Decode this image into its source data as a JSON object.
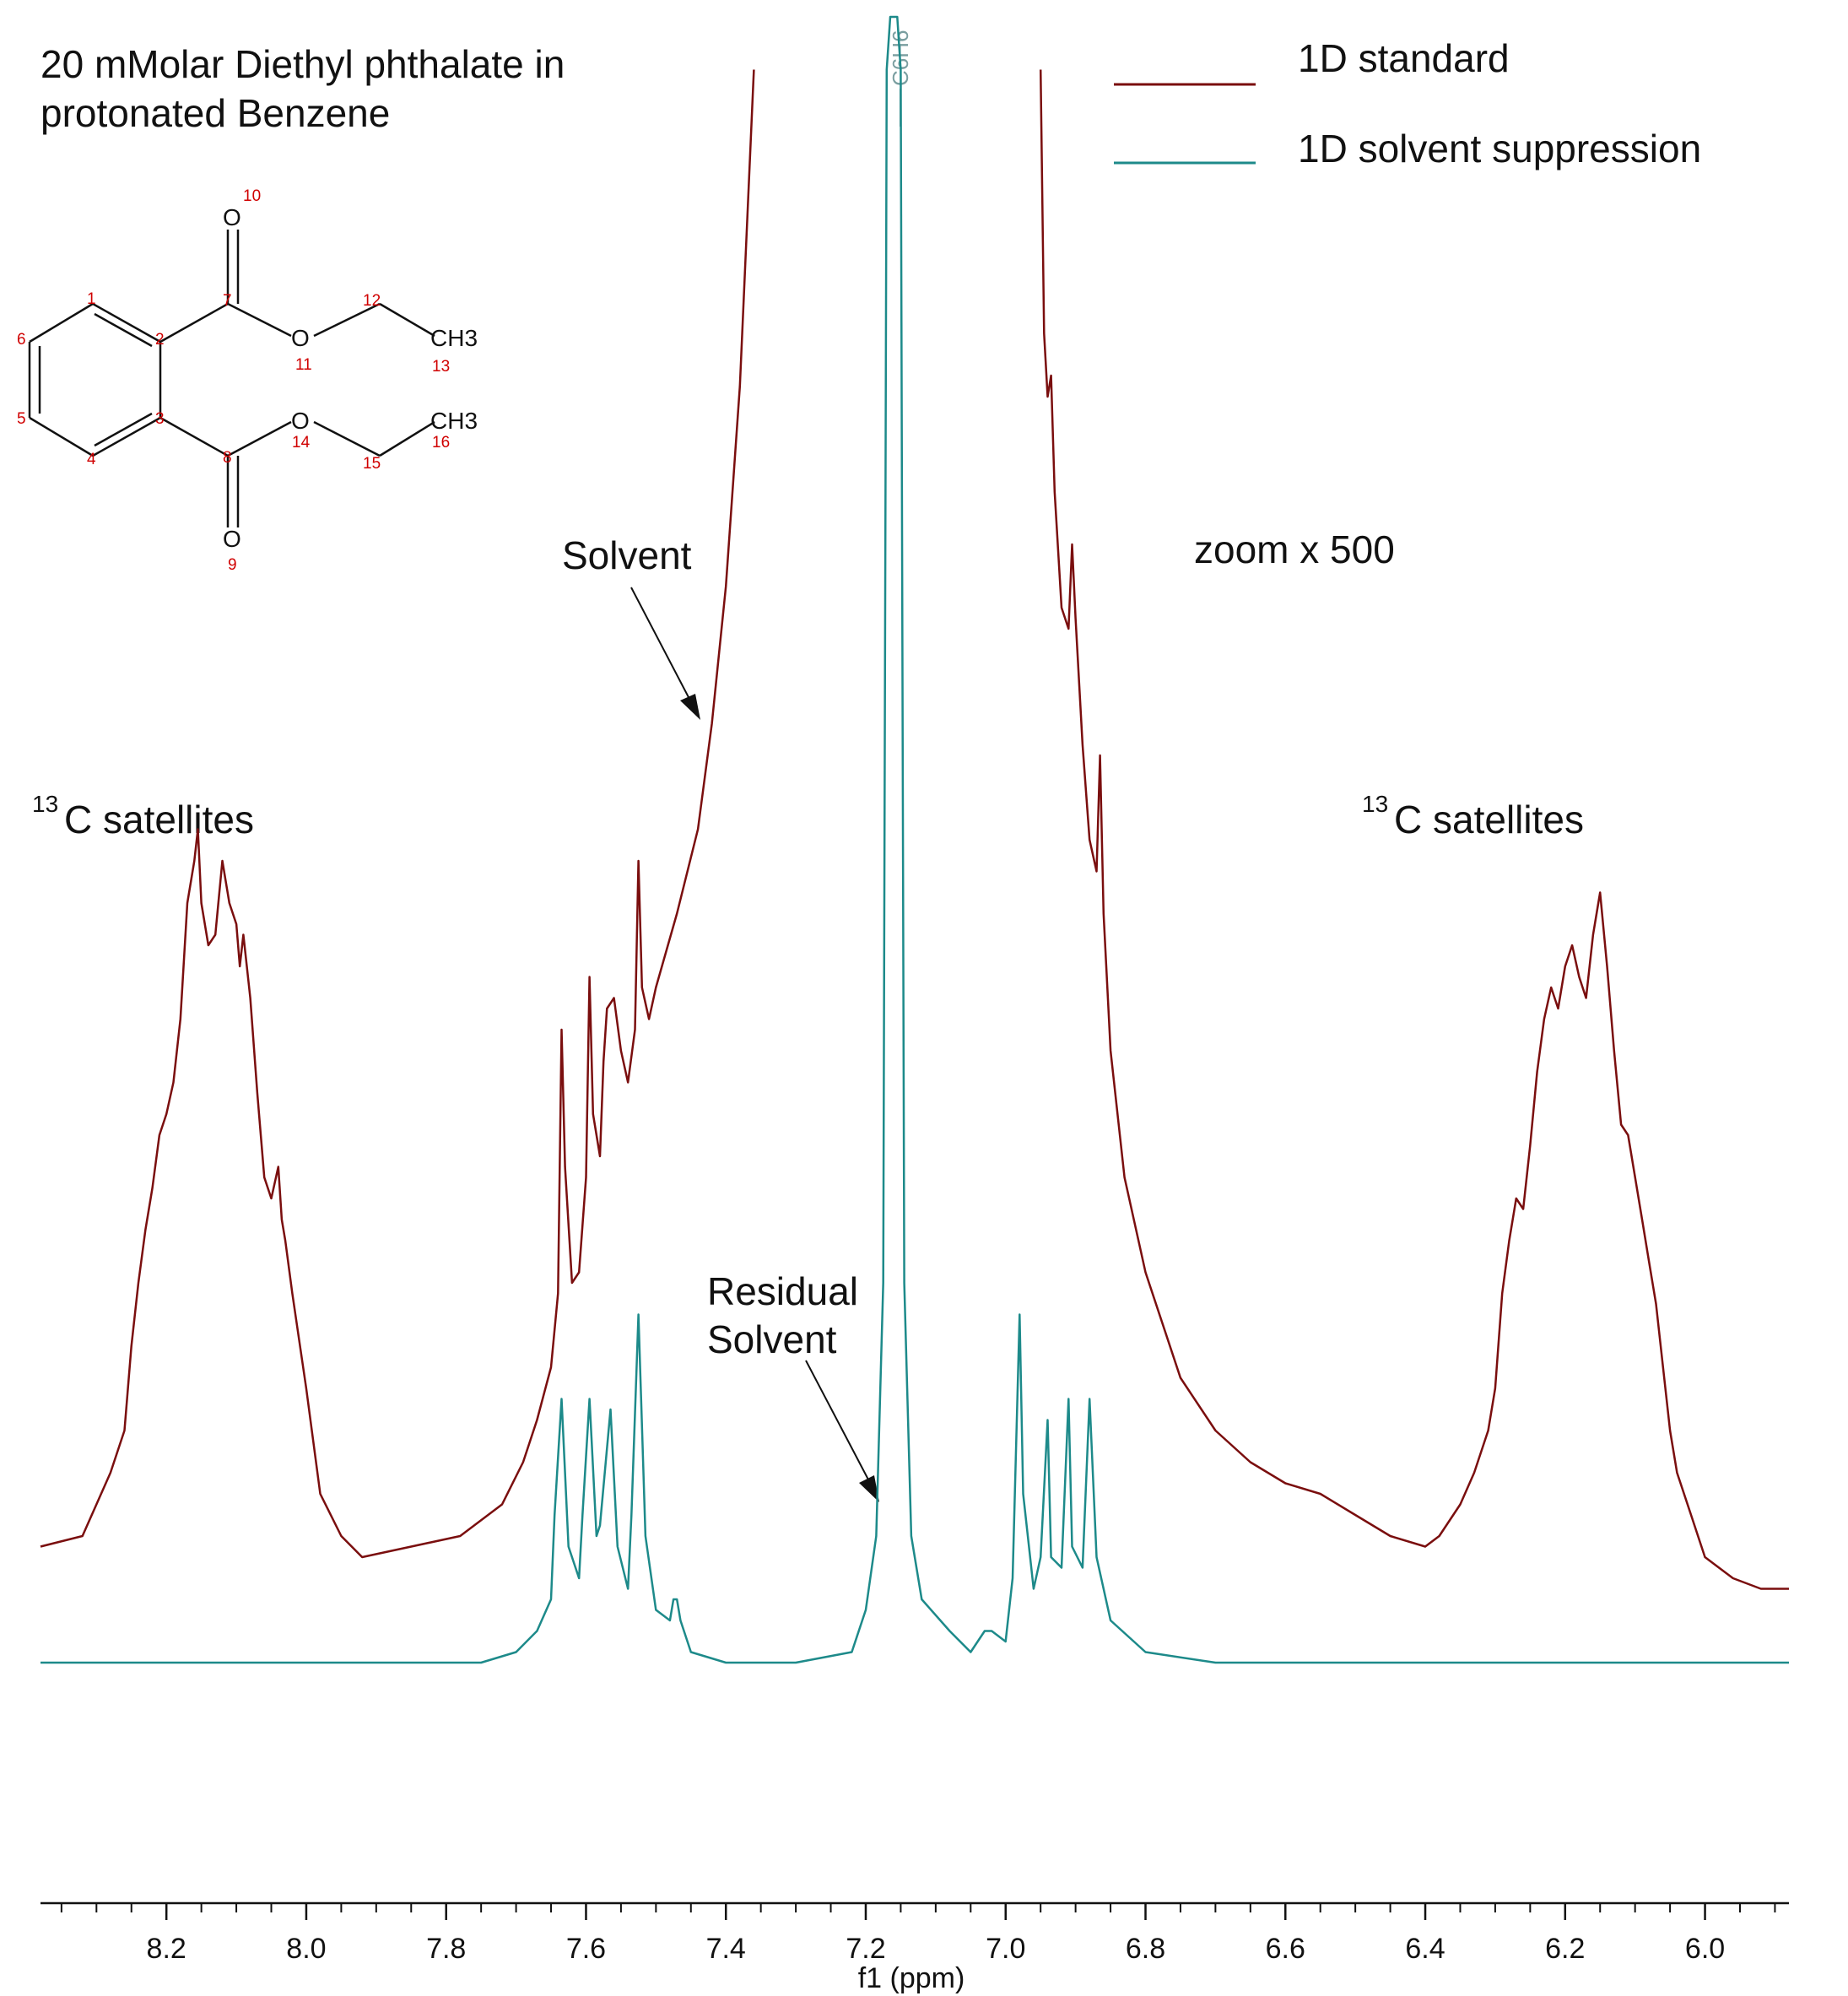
{
  "title": "20 mMolar Diethyl phthalate in",
  "title_line2": "protonated Benzene",
  "annotations": {
    "solvent": "Solvent",
    "residual_line1": "Residual",
    "residual_line2": "Solvent",
    "zoom": "zoom x 500",
    "satellites_sup": "13",
    "satellites_text": "C satellites",
    "peak_label": "C6H6"
  },
  "legend": [
    "1D standard",
    "1D solvent suppression"
  ],
  "colors": {
    "standard": "#7a0e0e",
    "suppression": "#1d8a8a",
    "atom_labels": "#d00000",
    "peak_label": "#7a9ea0"
  },
  "molecule": {
    "atom_numbers": [
      "1",
      "2",
      "3",
      "4",
      "5",
      "6",
      "7",
      "8",
      "9",
      "10",
      "11",
      "12",
      "13",
      "14",
      "15",
      "16"
    ],
    "atoms": [
      "O",
      "O",
      "O",
      "O",
      "CH3",
      "CH3"
    ]
  },
  "chart_data": {
    "type": "line",
    "xlabel": "f1 (ppm)",
    "xlim": [
      8.38,
      5.88
    ],
    "x_ticks": [
      8.2,
      8.0,
      7.8,
      7.6,
      7.4,
      7.2,
      7.0,
      6.8,
      6.6,
      6.4,
      6.2,
      6.0
    ],
    "x_tick_labels": [
      "8.2",
      "8.0",
      "7.8",
      "7.6",
      "7.4",
      "7.2",
      "7.0",
      "6.8",
      "6.6",
      "6.4",
      "6.2",
      "6.0"
    ],
    "ylabel": "",
    "series": [
      {
        "name": "1D standard",
        "color": "#7a0e0e",
        "baseline": 0.05,
        "points": [
          [
            8.38,
            0.05
          ],
          [
            8.32,
            0.06
          ],
          [
            8.3,
            0.09
          ],
          [
            8.28,
            0.12
          ],
          [
            8.26,
            0.16
          ],
          [
            8.25,
            0.24
          ],
          [
            8.24,
            0.3
          ],
          [
            8.23,
            0.35
          ],
          [
            8.22,
            0.39
          ],
          [
            8.21,
            0.44
          ],
          [
            8.2,
            0.46
          ],
          [
            8.19,
            0.49
          ],
          [
            8.18,
            0.55
          ],
          [
            8.17,
            0.66
          ],
          [
            8.16,
            0.7
          ],
          [
            8.155,
            0.73
          ],
          [
            8.15,
            0.66
          ],
          [
            8.14,
            0.62
          ],
          [
            8.13,
            0.63
          ],
          [
            8.12,
            0.7
          ],
          [
            8.11,
            0.66
          ],
          [
            8.1,
            0.64
          ],
          [
            8.095,
            0.6
          ],
          [
            8.09,
            0.63
          ],
          [
            8.08,
            0.57
          ],
          [
            8.07,
            0.48
          ],
          [
            8.06,
            0.4
          ],
          [
            8.05,
            0.38
          ],
          [
            8.04,
            0.41
          ],
          [
            8.035,
            0.36
          ],
          [
            8.03,
            0.34
          ],
          [
            8.02,
            0.29
          ],
          [
            8.0,
            0.2
          ],
          [
            7.98,
            0.1
          ],
          [
            7.95,
            0.06
          ],
          [
            7.92,
            0.04
          ],
          [
            7.85,
            0.05
          ],
          [
            7.78,
            0.06
          ],
          [
            7.72,
            0.09
          ],
          [
            7.69,
            0.13
          ],
          [
            7.67,
            0.17
          ],
          [
            7.65,
            0.22
          ],
          [
            7.64,
            0.29
          ],
          [
            7.635,
            0.54
          ],
          [
            7.63,
            0.41
          ],
          [
            7.62,
            0.3
          ],
          [
            7.61,
            0.31
          ],
          [
            7.6,
            0.4
          ],
          [
            7.595,
            0.59
          ],
          [
            7.59,
            0.46
          ],
          [
            7.58,
            0.42
          ],
          [
            7.575,
            0.51
          ],
          [
            7.57,
            0.56
          ],
          [
            7.56,
            0.57
          ],
          [
            7.55,
            0.52
          ],
          [
            7.54,
            0.49
          ],
          [
            7.53,
            0.54
          ],
          [
            7.525,
            0.7
          ],
          [
            7.52,
            0.58
          ],
          [
            7.51,
            0.55
          ],
          [
            7.5,
            0.58
          ],
          [
            7.47,
            0.65
          ],
          [
            7.44,
            0.73
          ],
          [
            7.42,
            0.83
          ],
          [
            7.4,
            0.96
          ],
          [
            7.38,
            1.15
          ],
          [
            7.36,
            1.45
          ]
        ]
      },
      {
        "name": "1D standard",
        "color": "#7a0e0e",
        "points": [
          [
            6.95,
            1.45
          ],
          [
            6.945,
            1.2
          ],
          [
            6.94,
            1.14
          ],
          [
            6.935,
            1.16
          ],
          [
            6.93,
            1.05
          ],
          [
            6.92,
            0.94
          ],
          [
            6.91,
            0.92
          ],
          [
            6.905,
            1.0
          ],
          [
            6.9,
            0.93
          ],
          [
            6.89,
            0.81
          ],
          [
            6.88,
            0.72
          ],
          [
            6.87,
            0.69
          ],
          [
            6.865,
            0.8
          ],
          [
            6.86,
            0.65
          ],
          [
            6.85,
            0.52
          ],
          [
            6.83,
            0.4
          ],
          [
            6.8,
            0.31
          ],
          [
            6.75,
            0.21
          ],
          [
            6.7,
            0.16
          ],
          [
            6.65,
            0.13
          ],
          [
            6.6,
            0.11
          ],
          [
            6.55,
            0.1
          ],
          [
            6.5,
            0.08
          ],
          [
            6.45,
            0.06
          ],
          [
            6.4,
            0.05
          ],
          [
            6.38,
            0.06
          ],
          [
            6.35,
            0.09
          ],
          [
            6.33,
            0.12
          ],
          [
            6.31,
            0.16
          ],
          [
            6.3,
            0.2
          ],
          [
            6.29,
            0.29
          ],
          [
            6.28,
            0.34
          ],
          [
            6.27,
            0.38
          ],
          [
            6.26,
            0.37
          ],
          [
            6.25,
            0.43
          ],
          [
            6.24,
            0.5
          ],
          [
            6.23,
            0.55
          ],
          [
            6.22,
            0.58
          ],
          [
            6.21,
            0.56
          ],
          [
            6.2,
            0.6
          ],
          [
            6.19,
            0.62
          ],
          [
            6.18,
            0.59
          ],
          [
            6.17,
            0.57
          ],
          [
            6.16,
            0.63
          ],
          [
            6.15,
            0.67
          ],
          [
            6.14,
            0.6
          ],
          [
            6.13,
            0.52
          ],
          [
            6.12,
            0.45
          ],
          [
            6.11,
            0.44
          ],
          [
            6.1,
            0.4
          ],
          [
            6.09,
            0.36
          ],
          [
            6.08,
            0.32
          ],
          [
            6.07,
            0.28
          ],
          [
            6.06,
            0.22
          ],
          [
            6.05,
            0.16
          ],
          [
            6.04,
            0.12
          ],
          [
            6.02,
            0.08
          ],
          [
            6.0,
            0.04
          ],
          [
            5.96,
            0.02
          ],
          [
            5.92,
            0.01
          ],
          [
            5.88,
            0.01
          ]
        ]
      },
      {
        "name": "1D solvent suppression",
        "color": "#1d8a8a",
        "points": [
          [
            8.38,
            -0.06
          ],
          [
            8.0,
            -0.06
          ],
          [
            7.75,
            -0.06
          ],
          [
            7.7,
            -0.05
          ],
          [
            7.67,
            -0.03
          ],
          [
            7.65,
            0.0
          ],
          [
            7.645,
            0.08
          ],
          [
            7.635,
            0.19
          ],
          [
            7.625,
            0.05
          ],
          [
            7.61,
            0.02
          ],
          [
            7.605,
            0.08
          ],
          [
            7.595,
            0.19
          ],
          [
            7.585,
            0.06
          ],
          [
            7.58,
            0.07
          ],
          [
            7.565,
            0.18
          ],
          [
            7.555,
            0.05
          ],
          [
            7.54,
            0.01
          ],
          [
            7.535,
            0.08
          ],
          [
            7.525,
            0.27
          ],
          [
            7.515,
            0.06
          ],
          [
            7.5,
            -0.01
          ],
          [
            7.48,
            -0.02
          ],
          [
            7.475,
            0.0
          ],
          [
            7.47,
            0.0
          ],
          [
            7.465,
            -0.02
          ],
          [
            7.45,
            -0.05
          ],
          [
            7.4,
            -0.06
          ],
          [
            7.3,
            -0.06
          ],
          [
            7.22,
            -0.05
          ],
          [
            7.2,
            -0.01
          ],
          [
            7.185,
            0.06
          ],
          [
            7.175,
            0.3
          ],
          [
            7.17,
            1.45
          ],
          [
            7.165,
            1.5
          ],
          [
            7.155,
            1.5
          ],
          [
            7.15,
            1.45
          ],
          [
            7.145,
            0.3
          ],
          [
            7.135,
            0.06
          ],
          [
            7.12,
            0.0
          ],
          [
            7.08,
            -0.03
          ],
          [
            7.05,
            -0.05
          ],
          [
            7.03,
            -0.03
          ],
          [
            7.02,
            -0.03
          ],
          [
            7.0,
            -0.04
          ],
          [
            6.99,
            0.02
          ],
          [
            6.98,
            0.27
          ],
          [
            6.975,
            0.1
          ],
          [
            6.96,
            0.01
          ],
          [
            6.95,
            0.04
          ],
          [
            6.94,
            0.17
          ],
          [
            6.935,
            0.04
          ],
          [
            6.92,
            0.03
          ],
          [
            6.91,
            0.19
          ],
          [
            6.905,
            0.05
          ],
          [
            6.89,
            0.03
          ],
          [
            6.88,
            0.19
          ],
          [
            6.87,
            0.04
          ],
          [
            6.85,
            -0.02
          ],
          [
            6.8,
            -0.05
          ],
          [
            6.7,
            -0.06
          ],
          [
            6.5,
            -0.06
          ],
          [
            6.2,
            -0.06
          ],
          [
            5.88,
            -0.06
          ]
        ]
      }
    ]
  }
}
